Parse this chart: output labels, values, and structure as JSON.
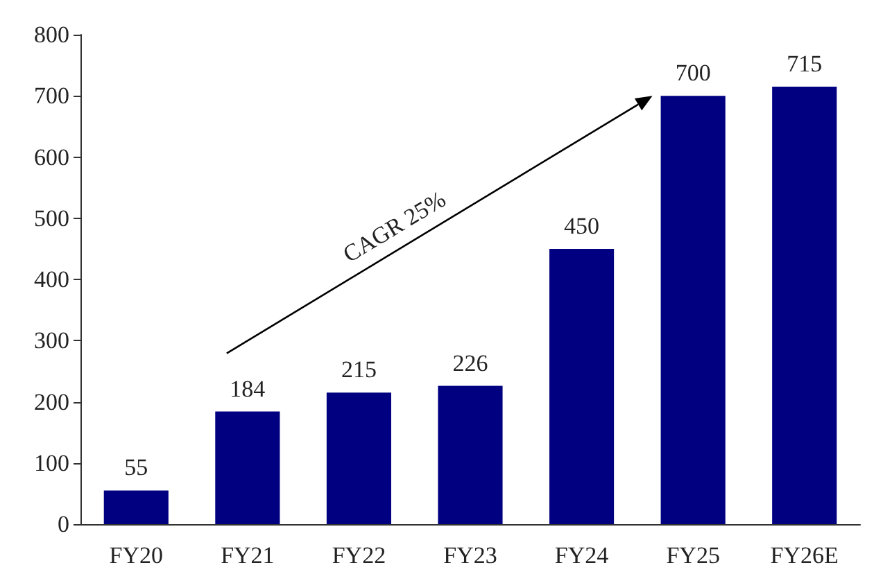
{
  "chart_data": {
    "type": "bar",
    "categories": [
      "FY20",
      "FY21",
      "FY22",
      "FY23",
      "FY24",
      "FY25",
      "FY26E"
    ],
    "values": [
      55,
      184,
      215,
      226,
      450,
      700,
      715
    ],
    "color": "#000080",
    "ylim": [
      0,
      800
    ],
    "yticks": [
      0,
      100,
      200,
      300,
      400,
      500,
      600,
      700,
      800
    ],
    "grid": false,
    "data_labels": true,
    "annotations": [
      "CAGR 25%"
    ]
  }
}
